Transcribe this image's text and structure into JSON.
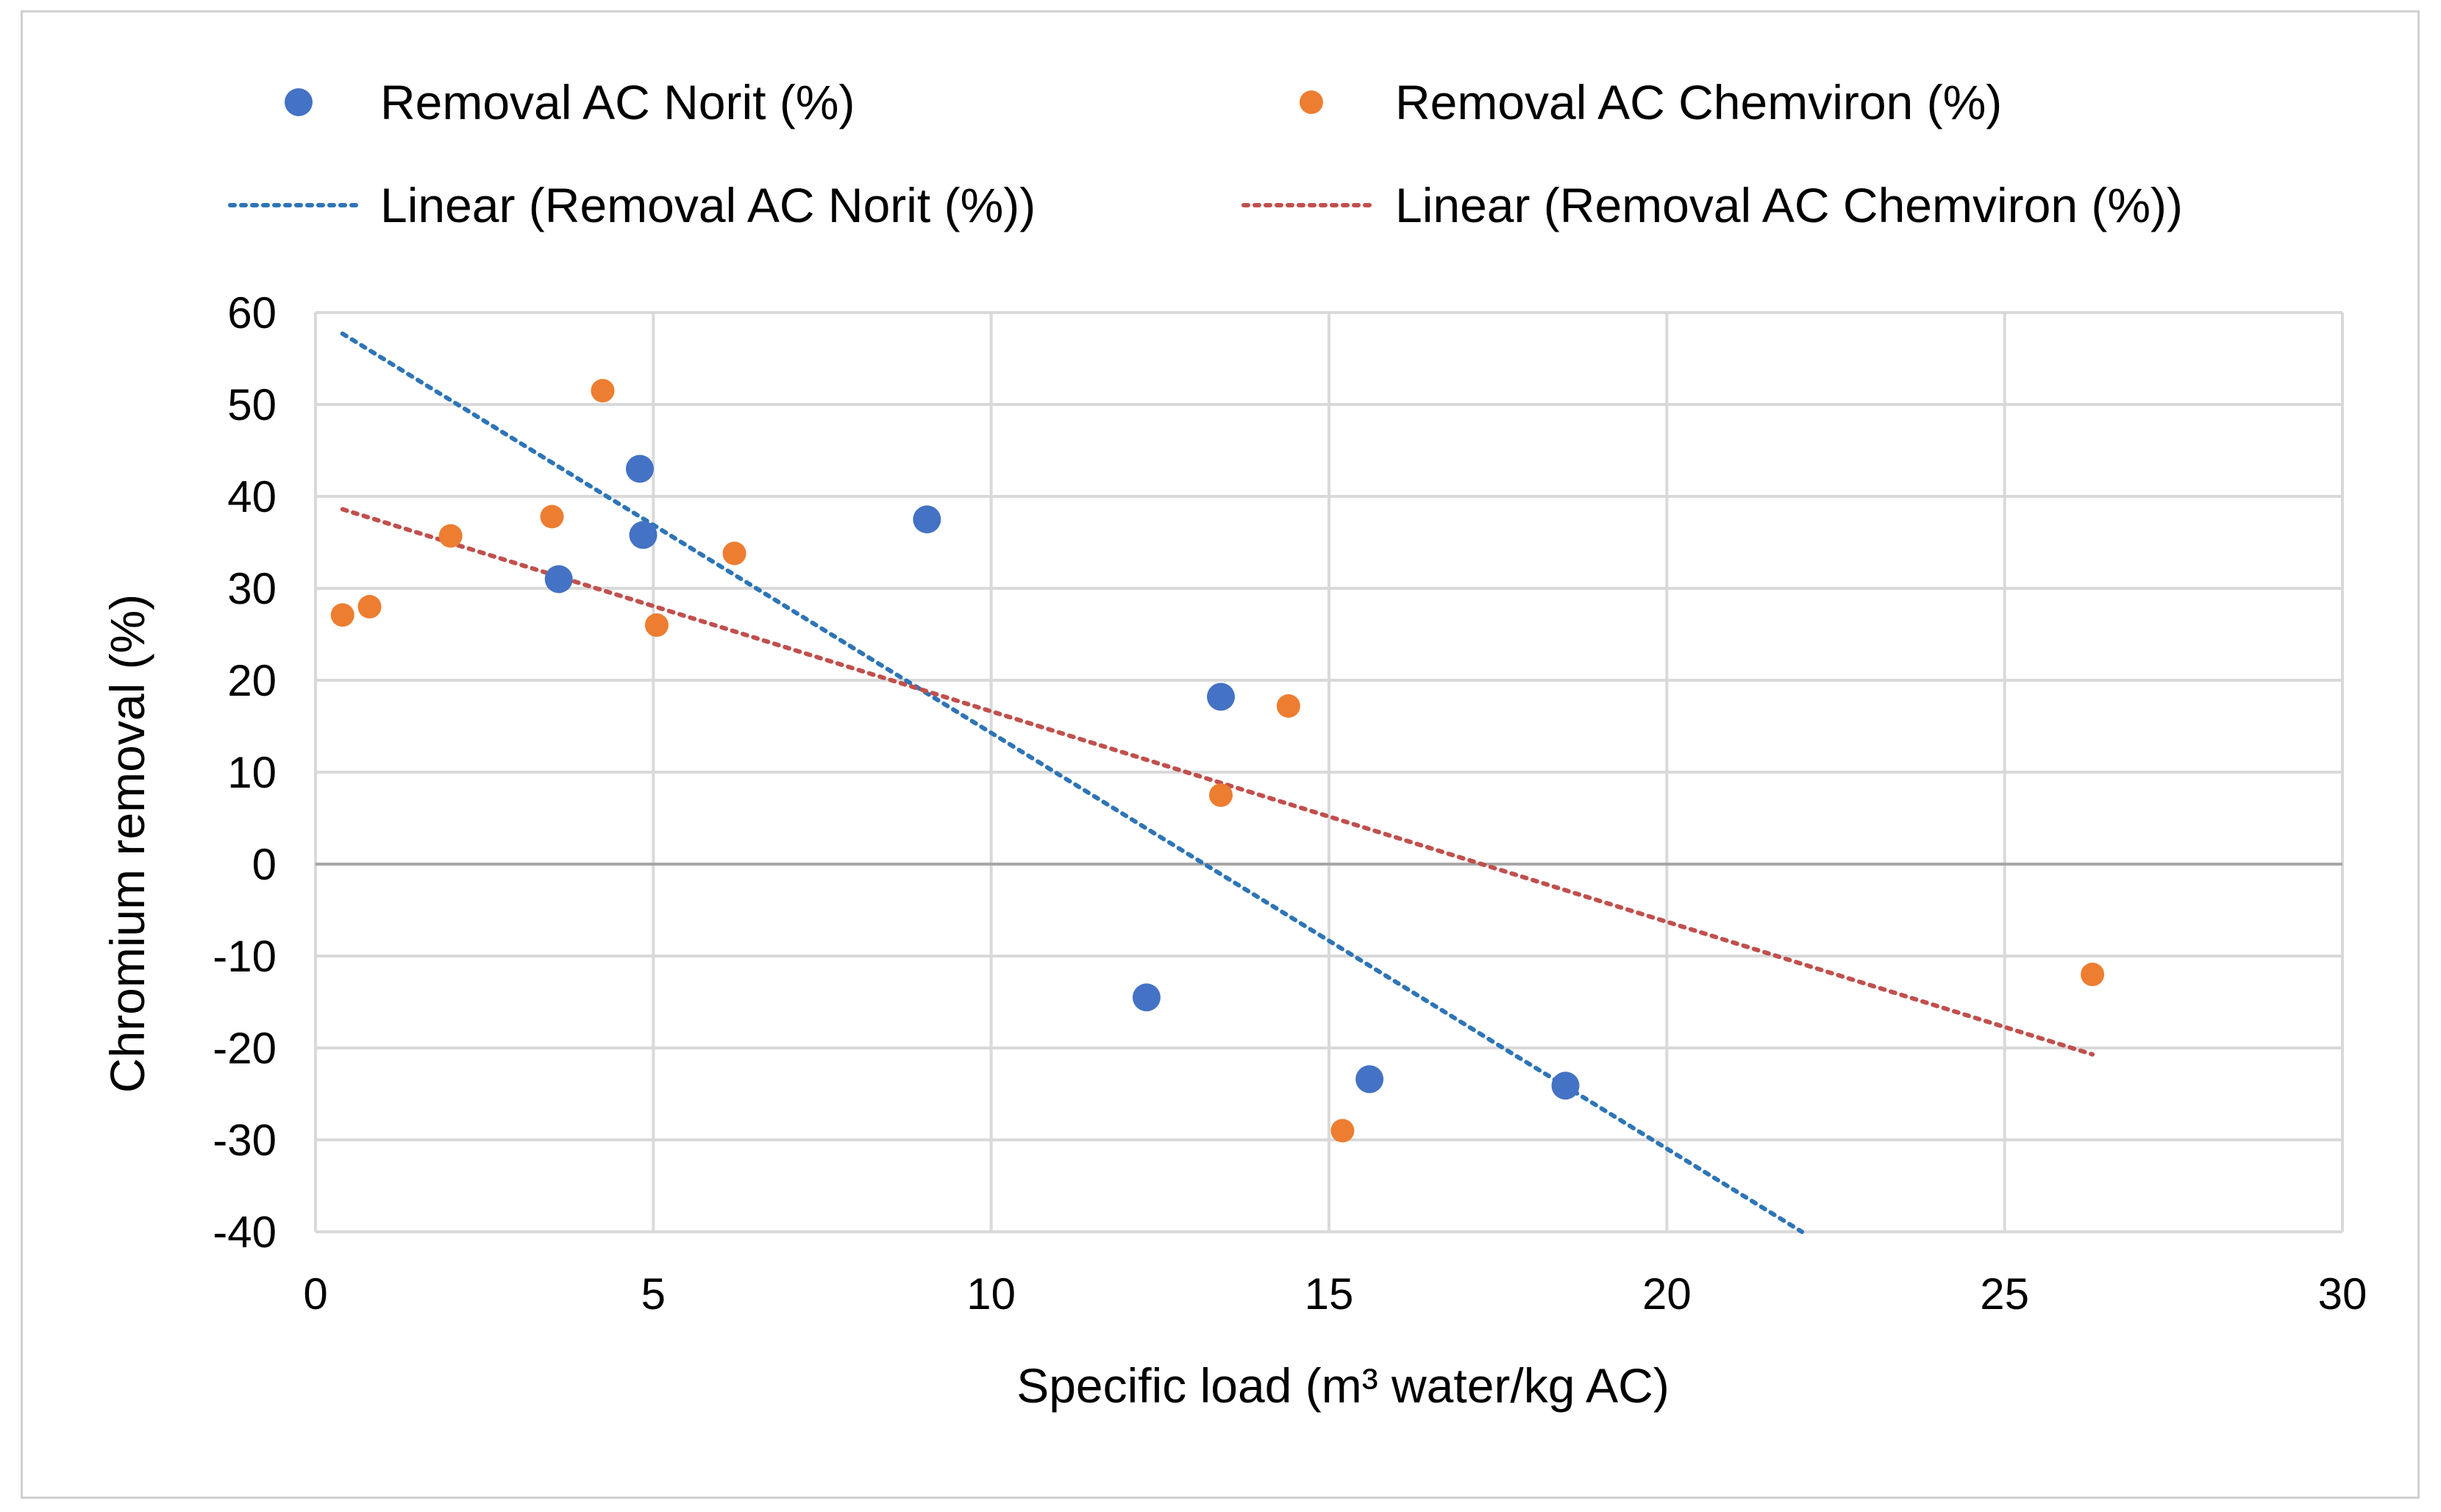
{
  "chart_data": {
    "type": "scatter",
    "title": "",
    "xlabel": "Specific load (m³ water/kg AC)",
    "ylabel": "Chromium removal (%)",
    "xlim": [
      0,
      30
    ],
    "ylim": [
      -40,
      60
    ],
    "x_ticks": [
      0,
      5,
      10,
      15,
      20,
      25,
      30
    ],
    "y_ticks": [
      60,
      50,
      40,
      30,
      20,
      10,
      0,
      -10,
      -20,
      -30,
      -40
    ],
    "grid": true,
    "legend_position": "top",
    "series": [
      {
        "name": "Removal AC Norit (%)",
        "color": "#4472C4",
        "points": [
          {
            "x": 3.6,
            "y": 31
          },
          {
            "x": 4.8,
            "y": 43
          },
          {
            "x": 4.85,
            "y": 35.8
          },
          {
            "x": 9.05,
            "y": 37.5
          },
          {
            "x": 12.3,
            "y": -14.5
          },
          {
            "x": 13.4,
            "y": 18.2
          },
          {
            "x": 15.6,
            "y": -23.4
          },
          {
            "x": 18.5,
            "y": -24.1
          }
        ]
      },
      {
        "name": "Removal AC Chemviron (%)",
        "color": "#ED7D31",
        "points": [
          {
            "x": 0.4,
            "y": 27.1
          },
          {
            "x": 0.8,
            "y": 28
          },
          {
            "x": 2.0,
            "y": 35.7
          },
          {
            "x": 3.5,
            "y": 37.8
          },
          {
            "x": 4.25,
            "y": 51.5
          },
          {
            "x": 5.05,
            "y": 26
          },
          {
            "x": 6.2,
            "y": 33.8
          },
          {
            "x": 13.4,
            "y": 7.5
          },
          {
            "x": 14.4,
            "y": 17.2
          },
          {
            "x": 15.2,
            "y": -29
          },
          {
            "x": 26.3,
            "y": -12
          }
        ]
      }
    ],
    "trendlines": [
      {
        "name": "Linear (Removal AC Norit (%))",
        "color": "#2E75B6",
        "x": [
          0.4,
          22
        ],
        "y": [
          57.7,
          -40
        ]
      },
      {
        "name": "Linear (Removal AC Chemviron (%))",
        "color": "#C0504D",
        "x": [
          0.4,
          26.3
        ],
        "y": [
          38.6,
          -20.7
        ]
      }
    ]
  }
}
